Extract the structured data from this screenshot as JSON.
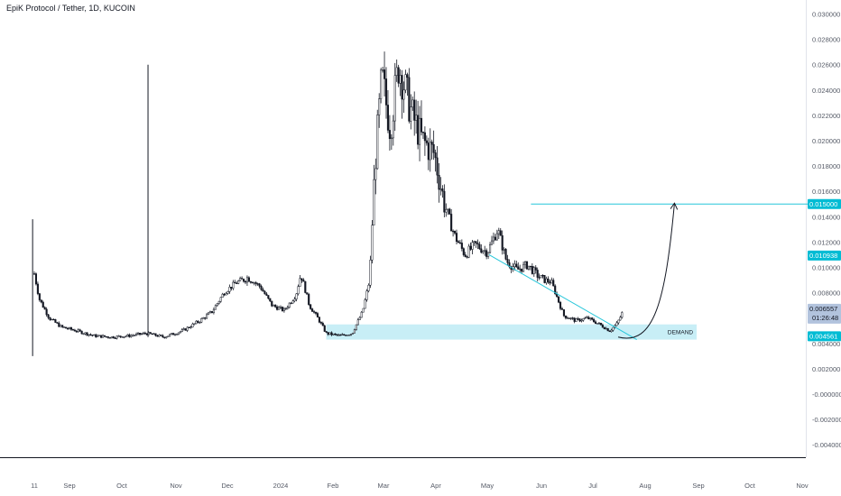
{
  "header": {
    "title": "EpiK Protocol / Tether, 1D, KUCOIN"
  },
  "chart_data": {
    "type": "candlestick",
    "title": "EpiK Protocol / Tether, 1D, KUCOIN",
    "x_ticks": [
      "11",
      "Sep",
      "Oct",
      "Nov",
      "Dec",
      "2024",
      "Feb",
      "Mar",
      "Apr",
      "May",
      "Jun",
      "Jul",
      "Aug",
      "Sep",
      "Oct",
      "Nov"
    ],
    "y_ticks": [
      "0.030000",
      "0.028000",
      "0.026000",
      "0.024000",
      "0.022000",
      "0.020000",
      "0.018000",
      "0.016000",
      "0.014000",
      "0.012000",
      "0.010000",
      "0.008000",
      "0.006000",
      "0.004000",
      "0.002000",
      "-0.000000",
      "-0.002000",
      "-0.004000"
    ],
    "y_range": [
      -0.0045,
      0.0315
    ],
    "close_path": [
      {
        "t": "2023-08-11",
        "v": 0.0095
      },
      {
        "t": "2023-08-14",
        "v": 0.0075
      },
      {
        "t": "2023-08-20",
        "v": 0.006
      },
      {
        "t": "2023-08-27",
        "v": 0.0053
      },
      {
        "t": "2023-09-05",
        "v": 0.005
      },
      {
        "t": "2023-09-15",
        "v": 0.0046
      },
      {
        "t": "2023-09-25",
        "v": 0.0045
      },
      {
        "t": "2023-10-05",
        "v": 0.0046
      },
      {
        "t": "2023-10-15",
        "v": 0.0048
      },
      {
        "t": "2023-10-25",
        "v": 0.0045
      },
      {
        "t": "2023-11-05",
        "v": 0.005
      },
      {
        "t": "2023-11-15",
        "v": 0.0058
      },
      {
        "t": "2023-11-22",
        "v": 0.0065
      },
      {
        "t": "2023-11-29",
        "v": 0.008
      },
      {
        "t": "2023-12-06",
        "v": 0.0088
      },
      {
        "t": "2023-12-13",
        "v": 0.0092
      },
      {
        "t": "2023-12-20",
        "v": 0.0085
      },
      {
        "t": "2023-12-27",
        "v": 0.007
      },
      {
        "t": "2024-01-03",
        "v": 0.0066
      },
      {
        "t": "2024-01-10",
        "v": 0.0078
      },
      {
        "t": "2024-01-13",
        "v": 0.0095
      },
      {
        "t": "2024-01-18",
        "v": 0.007
      },
      {
        "t": "2024-01-23",
        "v": 0.006
      },
      {
        "t": "2024-01-28",
        "v": 0.0048
      },
      {
        "t": "2024-02-05",
        "v": 0.0046
      },
      {
        "t": "2024-02-12",
        "v": 0.0048
      },
      {
        "t": "2024-02-18",
        "v": 0.0065
      },
      {
        "t": "2024-02-22",
        "v": 0.009
      },
      {
        "t": "2024-02-25",
        "v": 0.018
      },
      {
        "t": "2024-02-29",
        "v": 0.025
      },
      {
        "t": "2024-03-05",
        "v": 0.021
      },
      {
        "t": "2024-03-10",
        "v": 0.026
      },
      {
        "t": "2024-03-14",
        "v": 0.024
      },
      {
        "t": "2024-03-18",
        "v": 0.022
      },
      {
        "t": "2024-03-24",
        "v": 0.02
      },
      {
        "t": "2024-03-31",
        "v": 0.019
      },
      {
        "t": "2024-04-06",
        "v": 0.015
      },
      {
        "t": "2024-04-12",
        "v": 0.0125
      },
      {
        "t": "2024-04-18",
        "v": 0.011
      },
      {
        "t": "2024-04-24",
        "v": 0.0118
      },
      {
        "t": "2024-05-01",
        "v": 0.0112
      },
      {
        "t": "2024-05-07",
        "v": 0.013
      },
      {
        "t": "2024-05-12",
        "v": 0.0105
      },
      {
        "t": "2024-05-18",
        "v": 0.0098
      },
      {
        "t": "2024-05-24",
        "v": 0.0102
      },
      {
        "t": "2024-05-31",
        "v": 0.0092
      },
      {
        "t": "2024-06-07",
        "v": 0.0088
      },
      {
        "t": "2024-06-14",
        "v": 0.0062
      },
      {
        "t": "2024-06-21",
        "v": 0.0058
      },
      {
        "t": "2024-06-28",
        "v": 0.006
      },
      {
        "t": "2024-07-05",
        "v": 0.0055
      },
      {
        "t": "2024-07-11",
        "v": 0.005
      },
      {
        "t": "2024-07-15",
        "v": 0.0055
      },
      {
        "t": "2024-07-17",
        "v": 0.006
      },
      {
        "t": "2024-07-19",
        "v": 0.0066
      }
    ],
    "spikes": [
      {
        "t": "2023-08-10",
        "high": 0.0138,
        "low": 0.003
      },
      {
        "t": "2023-10-16",
        "high": 0.026,
        "low": 0.0045
      }
    ],
    "annotations": {
      "demand_zone": {
        "label": "DEMAND",
        "low": 0.0043,
        "high": 0.0055,
        "from": "2024-01-28",
        "to": "2024-08-31"
      },
      "target_line": {
        "value": 0.015,
        "from": "2024-05-26",
        "to": "2024-11-30"
      },
      "trend_line": {
        "from": {
          "t": "2024-05-02",
          "v": 0.011
        },
        "to": {
          "t": "2024-07-27",
          "v": 0.0043
        }
      },
      "projection_curve": {
        "from": {
          "t": "2024-07-16",
          "v": 0.0045
        },
        "to": {
          "t": "2024-08-18",
          "v": 0.015
        }
      }
    },
    "price_tags": [
      {
        "label": "0.015000",
        "value": 0.015,
        "color": "#00bcd4",
        "text_color": "#ffffff"
      },
      {
        "label": "0.010938",
        "value": 0.010938,
        "color": "#00bcd4",
        "text_color": "#ffffff"
      },
      {
        "label": "0.006557",
        "value": 0.006557,
        "color": "#b2c3dd",
        "text_color": "#131722",
        "sub": "01:26:48"
      },
      {
        "label": "0.004561",
        "value": 0.004561,
        "color": "#00bcd4",
        "text_color": "#ffffff"
      }
    ],
    "colors": {
      "candles": "#131722",
      "zone": "#c8eef6",
      "lines": "#26c6da",
      "axis": "#555a66"
    }
  }
}
